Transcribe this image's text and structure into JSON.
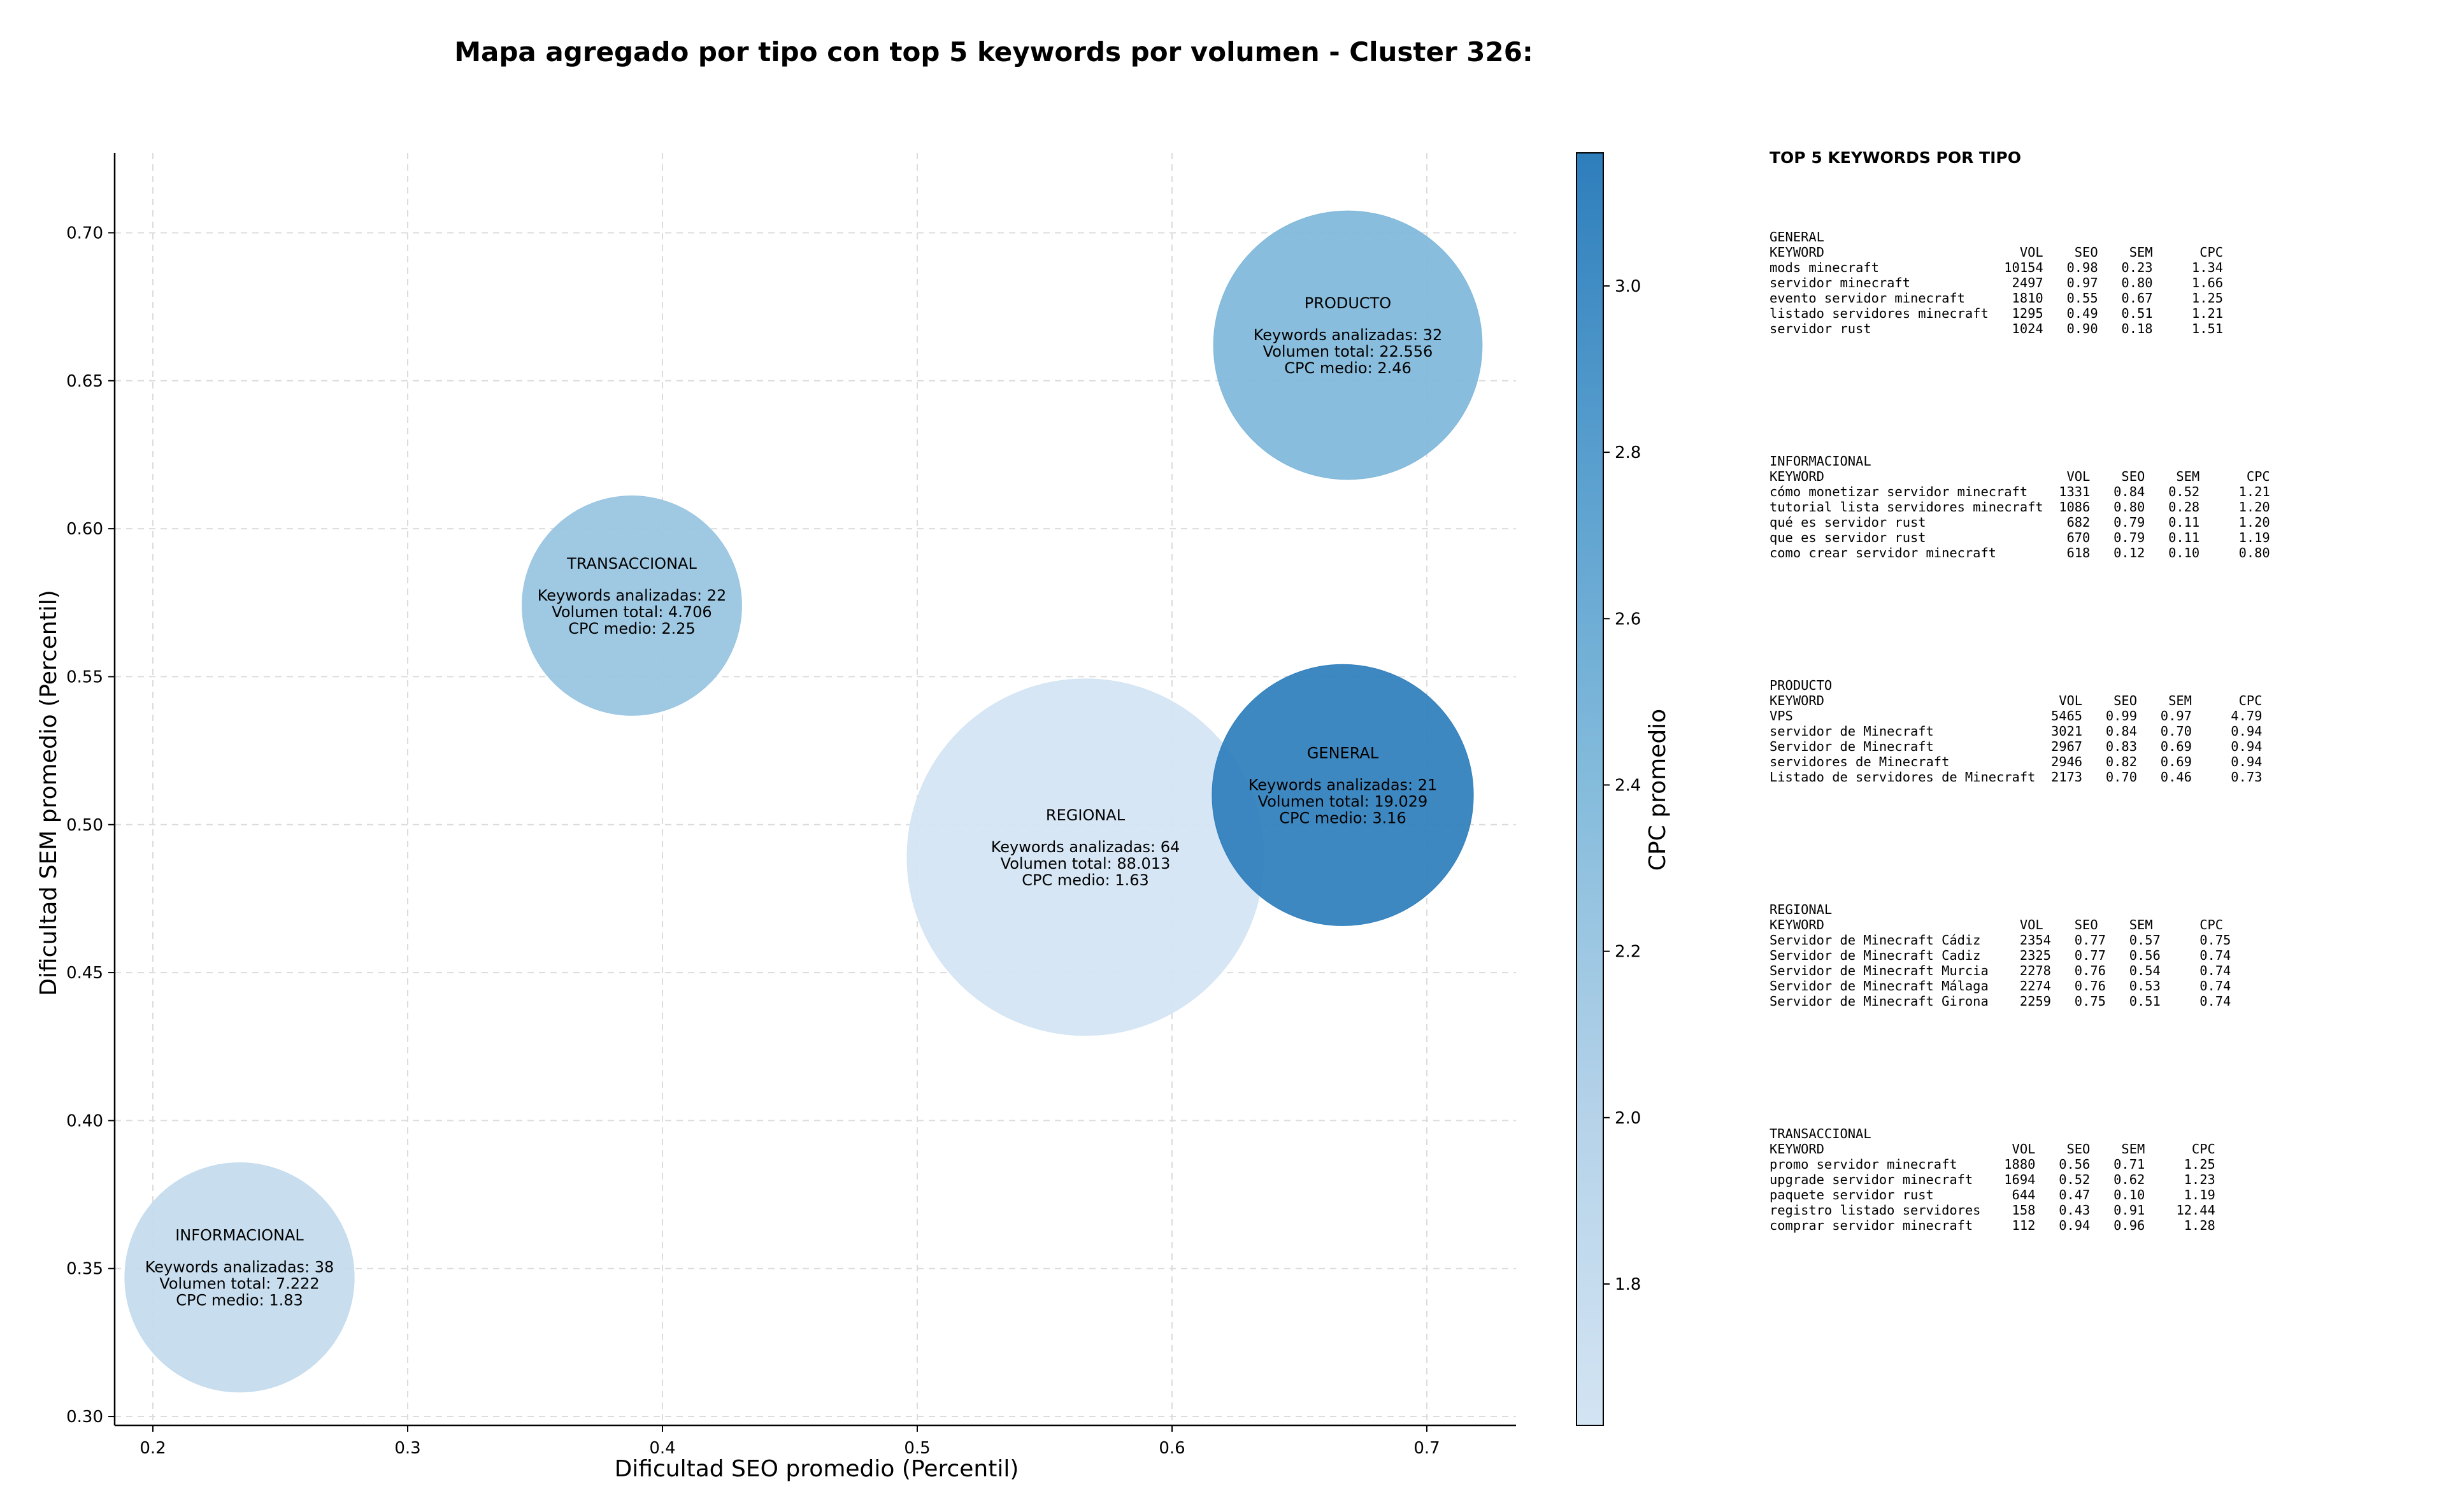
{
  "chart_data": {
    "type": "scatter",
    "title": "Mapa agregado por tipo con top 5 keywords por volumen - Cluster 326:",
    "xlabel": "Dificultad SEO promedio (Percentil)",
    "ylabel": "Dificultad SEM promedio (Percentil)",
    "xlim": [
      0.185,
      0.735
    ],
    "ylim": [
      0.297,
      0.727
    ],
    "xticks": [
      0.2,
      0.3,
      0.4,
      0.5,
      0.6,
      0.7
    ],
    "yticks": [
      0.3,
      0.35,
      0.4,
      0.45,
      0.5,
      0.55,
      0.6,
      0.65,
      0.7
    ],
    "grid": true,
    "colorbar": {
      "label": "CPC promedio",
      "range": [
        1.63,
        3.16
      ],
      "ticks": [
        1.8,
        2.0,
        2.2,
        2.4,
        2.6,
        2.8,
        3.0
      ]
    },
    "points": [
      {
        "type": "PRODUCTO",
        "seo": 0.669,
        "sem": 0.662,
        "keywords_label": "Keywords analizadas: 32",
        "volume": 22556,
        "volume_label": "Volumen total: 22.556",
        "cpc": 2.46,
        "cpc_label": "CPC medio: 2.46"
      },
      {
        "type": "TRANSACCIONAL",
        "seo": 0.388,
        "sem": 0.574,
        "keywords_label": "Keywords analizadas: 22",
        "volume": 4706,
        "volume_label": "Volumen total: 4.706",
        "cpc": 2.25,
        "cpc_label": "CPC medio: 2.25"
      },
      {
        "type": "REGIONAL",
        "seo": 0.566,
        "sem": 0.489,
        "keywords_label": "Keywords analizadas: 64",
        "volume": 88013,
        "volume_label": "Volumen total: 88.013",
        "cpc": 1.63,
        "cpc_label": "CPC medio: 1.63"
      },
      {
        "type": "GENERAL",
        "seo": 0.667,
        "sem": 0.51,
        "keywords_label": "Keywords analizadas: 21",
        "volume": 19029,
        "volume_label": "Volumen total: 19.029",
        "cpc": 3.16,
        "cpc_label": "CPC medio: 3.16"
      },
      {
        "type": "INFORMACIONAL",
        "seo": 0.234,
        "sem": 0.347,
        "keywords_label": "Keywords analizadas: 38",
        "volume": 7222,
        "volume_label": "Volumen total: 7.222",
        "cpc": 1.83,
        "cpc_label": "CPC medio: 1.83"
      }
    ]
  },
  "top5": {
    "title": "TOP 5 KEYWORDS POR TIPO",
    "blocks": [
      {
        "type": "GENERAL",
        "header": "KEYWORD                         VOL    SEO    SEM      CPC",
        "rows": [
          "mods minecraft                10154   0.98   0.23     1.34",
          "servidor minecraft             2497   0.97   0.80     1.66",
          "evento servidor minecraft      1810   0.55   0.67     1.25",
          "listado servidores minecraft   1295   0.49   0.51     1.21",
          "servidor rust                  1024   0.90   0.18     1.51"
        ]
      },
      {
        "type": "INFORMACIONAL",
        "header": "KEYWORD                               VOL    SEO    SEM      CPC",
        "rows": [
          "cómo monetizar servidor minecraft    1331   0.84   0.52     1.21",
          "tutorial lista servidores minecraft  1086   0.80   0.28     1.20",
          "qué es servidor rust                  682   0.79   0.11     1.20",
          "que es servidor rust                  670   0.79   0.11     1.19",
          "como crear servidor minecraft         618   0.12   0.10     0.80"
        ]
      },
      {
        "type": "PRODUCTO",
        "header": "KEYWORD                              VOL    SEO    SEM      CPC",
        "rows": [
          "VPS                                 5465   0.99   0.97     4.79",
          "servidor de Minecraft               3021   0.84   0.70     0.94",
          "Servidor de Minecraft               2967   0.83   0.69     0.94",
          "servidores de Minecraft             2946   0.82   0.69     0.94",
          "Listado de servidores de Minecraft  2173   0.70   0.46     0.73"
        ]
      },
      {
        "type": "REGIONAL",
        "header": "KEYWORD                         VOL    SEO    SEM      CPC",
        "rows": [
          "Servidor de Minecraft Cádiz     2354   0.77   0.57     0.75",
          "Servidor de Minecraft Cadiz     2325   0.77   0.56     0.74",
          "Servidor de Minecraft Murcia    2278   0.76   0.54     0.74",
          "Servidor de Minecraft Málaga    2274   0.76   0.53     0.74",
          "Servidor de Minecraft Girona    2259   0.75   0.51     0.74"
        ]
      },
      {
        "type": "TRANSACCIONAL",
        "header": "KEYWORD                        VOL    SEO    SEM      CPC",
        "rows": [
          "promo servidor minecraft      1880   0.56   0.71     1.25",
          "upgrade servidor minecraft    1694   0.52   0.62     1.23",
          "paquete servidor rust          644   0.47   0.10     1.19",
          "registro listado servidores    158   0.43   0.91    12.44",
          "comprar servidor minecraft     112   0.94   0.96     1.28"
        ]
      }
    ]
  }
}
